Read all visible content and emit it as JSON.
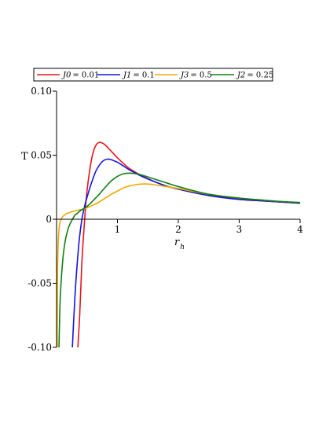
{
  "chart_data": {
    "type": "line",
    "xlabel": "r",
    "xlabel_sub": "h",
    "ylabel": "T",
    "xlim": [
      0,
      4
    ],
    "ylim": [
      -0.1,
      0.1
    ],
    "x_ticks": [
      {
        "value": 1,
        "label": "1"
      },
      {
        "value": 2,
        "label": "2"
      },
      {
        "value": 3,
        "label": "3"
      },
      {
        "value": 4,
        "label": "4"
      }
    ],
    "y_ticks": [
      {
        "value": -0.1,
        "label": "-0.10"
      },
      {
        "value": -0.05,
        "label": "-0.05"
      },
      {
        "value": 0,
        "label": "0"
      },
      {
        "value": 0.05,
        "label": "0.05"
      },
      {
        "value": 0.1,
        "label": "0.10"
      }
    ],
    "grid": false,
    "legend_position": "top",
    "series": [
      {
        "name": "J0 = 0.01",
        "legend_var": "J0",
        "legend_val": "= 0.01",
        "color": "#e8141c",
        "x": [
          0.35,
          0.38,
          0.4,
          0.42,
          0.45,
          0.48,
          0.5,
          0.55,
          0.6,
          0.65,
          0.7,
          0.75,
          0.8,
          0.85,
          0.9,
          1.0,
          1.1,
          1.2,
          1.4,
          1.6,
          1.8,
          2.0,
          2.5,
          3.0,
          3.5,
          4.0
        ],
        "y": [
          -0.1,
          -0.075,
          -0.052,
          -0.03,
          -0.008,
          0.012,
          0.022,
          0.04,
          0.052,
          0.058,
          0.06,
          0.0595,
          0.058,
          0.0555,
          0.053,
          0.048,
          0.0435,
          0.0395,
          0.034,
          0.0295,
          0.026,
          0.0235,
          0.0185,
          0.0155,
          0.014,
          0.0125
        ]
      },
      {
        "name": "J1 = 0.1",
        "legend_var": "J1",
        "legend_val": "= 0.1",
        "color": "#1414e0",
        "x": [
          0.26,
          0.28,
          0.3,
          0.32,
          0.35,
          0.38,
          0.42,
          0.47,
          0.5,
          0.55,
          0.6,
          0.65,
          0.7,
          0.75,
          0.8,
          0.85,
          0.9,
          1.0,
          1.1,
          1.2,
          1.4,
          1.6,
          1.8,
          2.0,
          2.5,
          3.0,
          3.5,
          4.0
        ],
        "y": [
          -0.1,
          -0.08,
          -0.062,
          -0.047,
          -0.028,
          -0.013,
          0.001,
          0.012,
          0.017,
          0.025,
          0.032,
          0.038,
          0.042,
          0.045,
          0.0465,
          0.047,
          0.0465,
          0.0445,
          0.0415,
          0.0385,
          0.0335,
          0.0295,
          0.026,
          0.0235,
          0.0185,
          0.0155,
          0.014,
          0.0125
        ]
      },
      {
        "name": "J3 = 0.5",
        "legend_var": "J3",
        "legend_val": "= 0.5",
        "color": "#f0a800",
        "x": [
          0.01,
          0.015,
          0.02,
          0.03,
          0.04,
          0.05,
          0.06,
          0.08,
          0.1,
          0.15,
          0.2,
          0.3,
          0.4,
          0.5,
          0.6,
          0.7,
          0.8,
          0.9,
          1.0,
          1.1,
          1.2,
          1.3,
          1.4,
          1.5,
          1.6,
          1.8,
          2.0,
          2.5,
          3.0,
          3.5,
          4.0
        ],
        "y": [
          -0.1,
          -0.045,
          -0.03,
          -0.015,
          -0.008,
          -0.004,
          -0.002,
          0.0005,
          0.002,
          0.004,
          0.005,
          0.0065,
          0.0075,
          0.009,
          0.011,
          0.0135,
          0.0165,
          0.0195,
          0.022,
          0.0245,
          0.026,
          0.027,
          0.0275,
          0.0275,
          0.027,
          0.0255,
          0.024,
          0.0195,
          0.0165,
          0.0145,
          0.013
        ]
      },
      {
        "name": "J2 = 0.25",
        "legend_var": "J2",
        "legend_val": "= 0.25",
        "color": "#108010",
        "x": [
          0.04,
          0.05,
          0.06,
          0.08,
          0.1,
          0.12,
          0.15,
          0.2,
          0.25,
          0.3,
          0.35,
          0.4,
          0.5,
          0.6,
          0.7,
          0.8,
          0.9,
          1.0,
          1.1,
          1.2,
          1.3,
          1.4,
          1.6,
          1.8,
          2.0,
          2.5,
          3.0,
          3.5,
          4.0
        ],
        "y": [
          -0.1,
          -0.078,
          -0.062,
          -0.045,
          -0.033,
          -0.024,
          -0.015,
          -0.006,
          -0.001,
          0.003,
          0.005,
          0.007,
          0.01,
          0.0145,
          0.0195,
          0.025,
          0.03,
          0.0335,
          0.0355,
          0.036,
          0.0355,
          0.0345,
          0.0315,
          0.0285,
          0.0255,
          0.0195,
          0.0165,
          0.0145,
          0.013
        ]
      }
    ]
  }
}
